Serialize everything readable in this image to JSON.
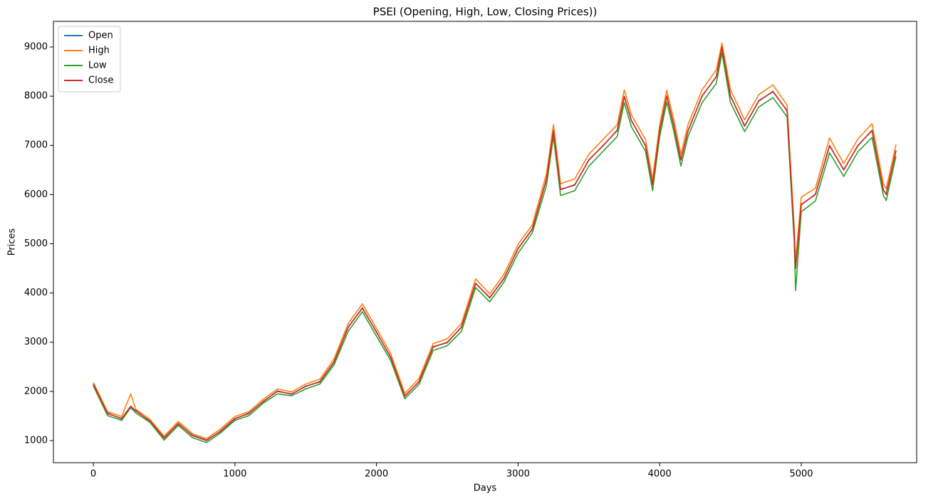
{
  "chart_data": {
    "type": "line",
    "title": "PSEI (Opening, High, Low, Closing Prices))",
    "x_label": "Days",
    "y_label": "Prices",
    "x": [
      0,
      100,
      200,
      264,
      300,
      400,
      500,
      600,
      700,
      800,
      900,
      1000,
      1100,
      1200,
      1300,
      1400,
      1500,
      1600,
      1700,
      1800,
      1900,
      2000,
      2100,
      2200,
      2300,
      2400,
      2500,
      2600,
      2700,
      2800,
      2900,
      3000,
      3100,
      3200,
      3250,
      3300,
      3400,
      3500,
      3600,
      3700,
      3750,
      3800,
      3900,
      3950,
      4000,
      4050,
      4100,
      4150,
      4200,
      4300,
      4400,
      4440,
      4500,
      4600,
      4700,
      4800,
      4900,
      4950,
      4960,
      5000,
      5100,
      5200,
      5300,
      5400,
      5500,
      5580,
      5600,
      5669
    ],
    "series": [
      {
        "name": "Open",
        "color": "#1f77b4",
        "values": [
          2140,
          1560,
          1440,
          1690,
          1610,
          1390,
          1060,
          1340,
          1110,
          1010,
          1190,
          1440,
          1560,
          1790,
          2010,
          1940,
          2110,
          2190,
          2590,
          3310,
          3690,
          3210,
          2690,
          1910,
          2190,
          2910,
          2990,
          3310,
          4190,
          3910,
          4290,
          4910,
          5290,
          6310,
          7290,
          6110,
          6190,
          6710,
          6990,
          7310,
          7990,
          7510,
          6990,
          6210,
          7290,
          8010,
          7390,
          6710,
          7290,
          8010,
          8390,
          8990,
          8010,
          7390,
          7910,
          8090,
          7710,
          5210,
          4510,
          5790,
          6010,
          6990,
          6510,
          6990,
          7310,
          6090,
          6010,
          6890
        ]
      },
      {
        "name": "High",
        "color": "#ff7f0e",
        "values": [
          2180,
          1590,
          1490,
          1950,
          1640,
          1430,
          1090,
          1390,
          1140,
          1040,
          1240,
          1490,
          1590,
          1840,
          2050,
          1990,
          2150,
          2250,
          2660,
          3380,
          3780,
          3280,
          2770,
          1960,
          2260,
          2970,
          3070,
          3380,
          4290,
          3980,
          4380,
          4990,
          5380,
          6420,
          7420,
          6220,
          6320,
          6820,
          7120,
          7420,
          8130,
          7620,
          7120,
          6310,
          7420,
          8120,
          7520,
          6820,
          7420,
          8130,
          8540,
          9080,
          8130,
          7520,
          8030,
          8230,
          7820,
          5350,
          4650,
          5950,
          6130,
          7150,
          6630,
          7130,
          7440,
          6220,
          6120,
          7020
        ]
      },
      {
        "name": "Low",
        "color": "#2ca02c",
        "values": [
          2110,
          1510,
          1410,
          1670,
          1560,
          1370,
          1010,
          1310,
          1060,
          960,
          1160,
          1410,
          1510,
          1760,
          1950,
          1910,
          2050,
          2150,
          2540,
          3220,
          3620,
          3120,
          2630,
          1850,
          2140,
          2830,
          2930,
          3220,
          4110,
          3820,
          4220,
          4810,
          5220,
          6180,
          7180,
          5980,
          6080,
          6580,
          6880,
          7180,
          7870,
          7380,
          6880,
          6080,
          7180,
          7880,
          7280,
          6580,
          7180,
          7870,
          8260,
          8880,
          7870,
          7280,
          7780,
          7970,
          7580,
          5050,
          4050,
          5650,
          5870,
          6850,
          6370,
          6870,
          7160,
          5980,
          5880,
          6780
        ]
      },
      {
        "name": "Close",
        "color": "#d62728",
        "values": [
          2150,
          1550,
          1450,
          1700,
          1600,
          1400,
          1050,
          1350,
          1100,
          1000,
          1200,
          1450,
          1550,
          1800,
          2000,
          1950,
          2100,
          2200,
          2600,
          3300,
          3700,
          3200,
          2700,
          1900,
          2200,
          2900,
          3000,
          3300,
          4200,
          3900,
          4300,
          4900,
          5300,
          6300,
          7300,
          6100,
          6200,
          6700,
          7000,
          7300,
          8000,
          7500,
          7000,
          6200,
          7300,
          8000,
          7400,
          6700,
          7300,
          8000,
          8400,
          9000,
          8000,
          7400,
          7900,
          8100,
          7700,
          5200,
          4500,
          5800,
          6000,
          7000,
          6500,
          7000,
          7300,
          6100,
          6000,
          6900
        ]
      }
    ],
    "xlim": [
      -282,
      5815
    ],
    "xticks": [
      0,
      1000,
      2000,
      3000,
      4000,
      5000
    ],
    "ylim": [
      551,
      9521
    ],
    "yticks": [
      1000,
      2000,
      3000,
      4000,
      5000,
      6000,
      7000,
      8000,
      9000
    ],
    "legend": "upper left"
  }
}
